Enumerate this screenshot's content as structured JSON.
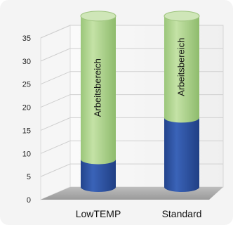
{
  "chart_data": {
    "type": "bar",
    "stacked": true,
    "style": "3d-cylinder",
    "categories": [
      "LowTEMP",
      "Standard"
    ],
    "series": [
      {
        "values": [
          6,
          15
        ],
        "color": "#2c4f9e"
      },
      {
        "label": "Arbeitsbereich",
        "values": [
          31,
          22
        ],
        "color": "#a9cf87"
      }
    ],
    "ylim": [
      0,
      35
    ],
    "yticks": [
      "0",
      "5",
      "10",
      "15",
      "20",
      "25",
      "30",
      "35"
    ],
    "grid": true
  }
}
